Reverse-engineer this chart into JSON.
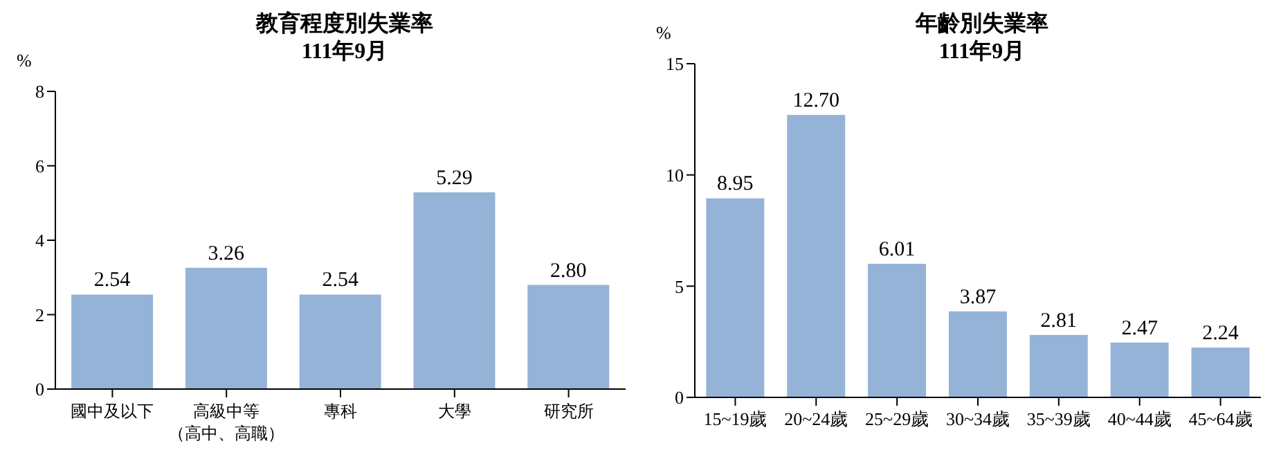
{
  "chart_data": [
    {
      "type": "bar",
      "title": "教育程度別失業率",
      "subtitle": "111年9月",
      "ylabel": "%",
      "categories": [
        "國中及以下",
        "高級中等（高中、高職）",
        "專科",
        "大學",
        "研究所"
      ],
      "values": [
        2.54,
        3.26,
        2.54,
        5.29,
        2.8
      ],
      "value_labels": [
        "2.54",
        "3.26",
        "2.54",
        "5.29",
        "2.80"
      ],
      "color": "#95b3d7",
      "ylim": [
        0,
        8
      ],
      "yticks": [
        0,
        2,
        4,
        6,
        8
      ],
      "grid": false,
      "legend": false
    },
    {
      "type": "bar",
      "title": "年齡別失業率",
      "subtitle": "111年9月",
      "ylabel": "%",
      "categories": [
        "15~19歲",
        "20~24歲",
        "25~29歲",
        "30~34歲",
        "35~39歲",
        "40~44歲",
        "45~64歲"
      ],
      "values": [
        8.95,
        12.7,
        6.01,
        3.87,
        2.81,
        2.47,
        2.24
      ],
      "value_labels": [
        "8.95",
        "12.70",
        "6.01",
        "3.87",
        "2.81",
        "2.47",
        "2.24"
      ],
      "color": "#95b3d7",
      "ylim": [
        0,
        15
      ],
      "yticks": [
        0,
        5,
        10,
        15
      ],
      "grid": false,
      "legend": false
    }
  ]
}
